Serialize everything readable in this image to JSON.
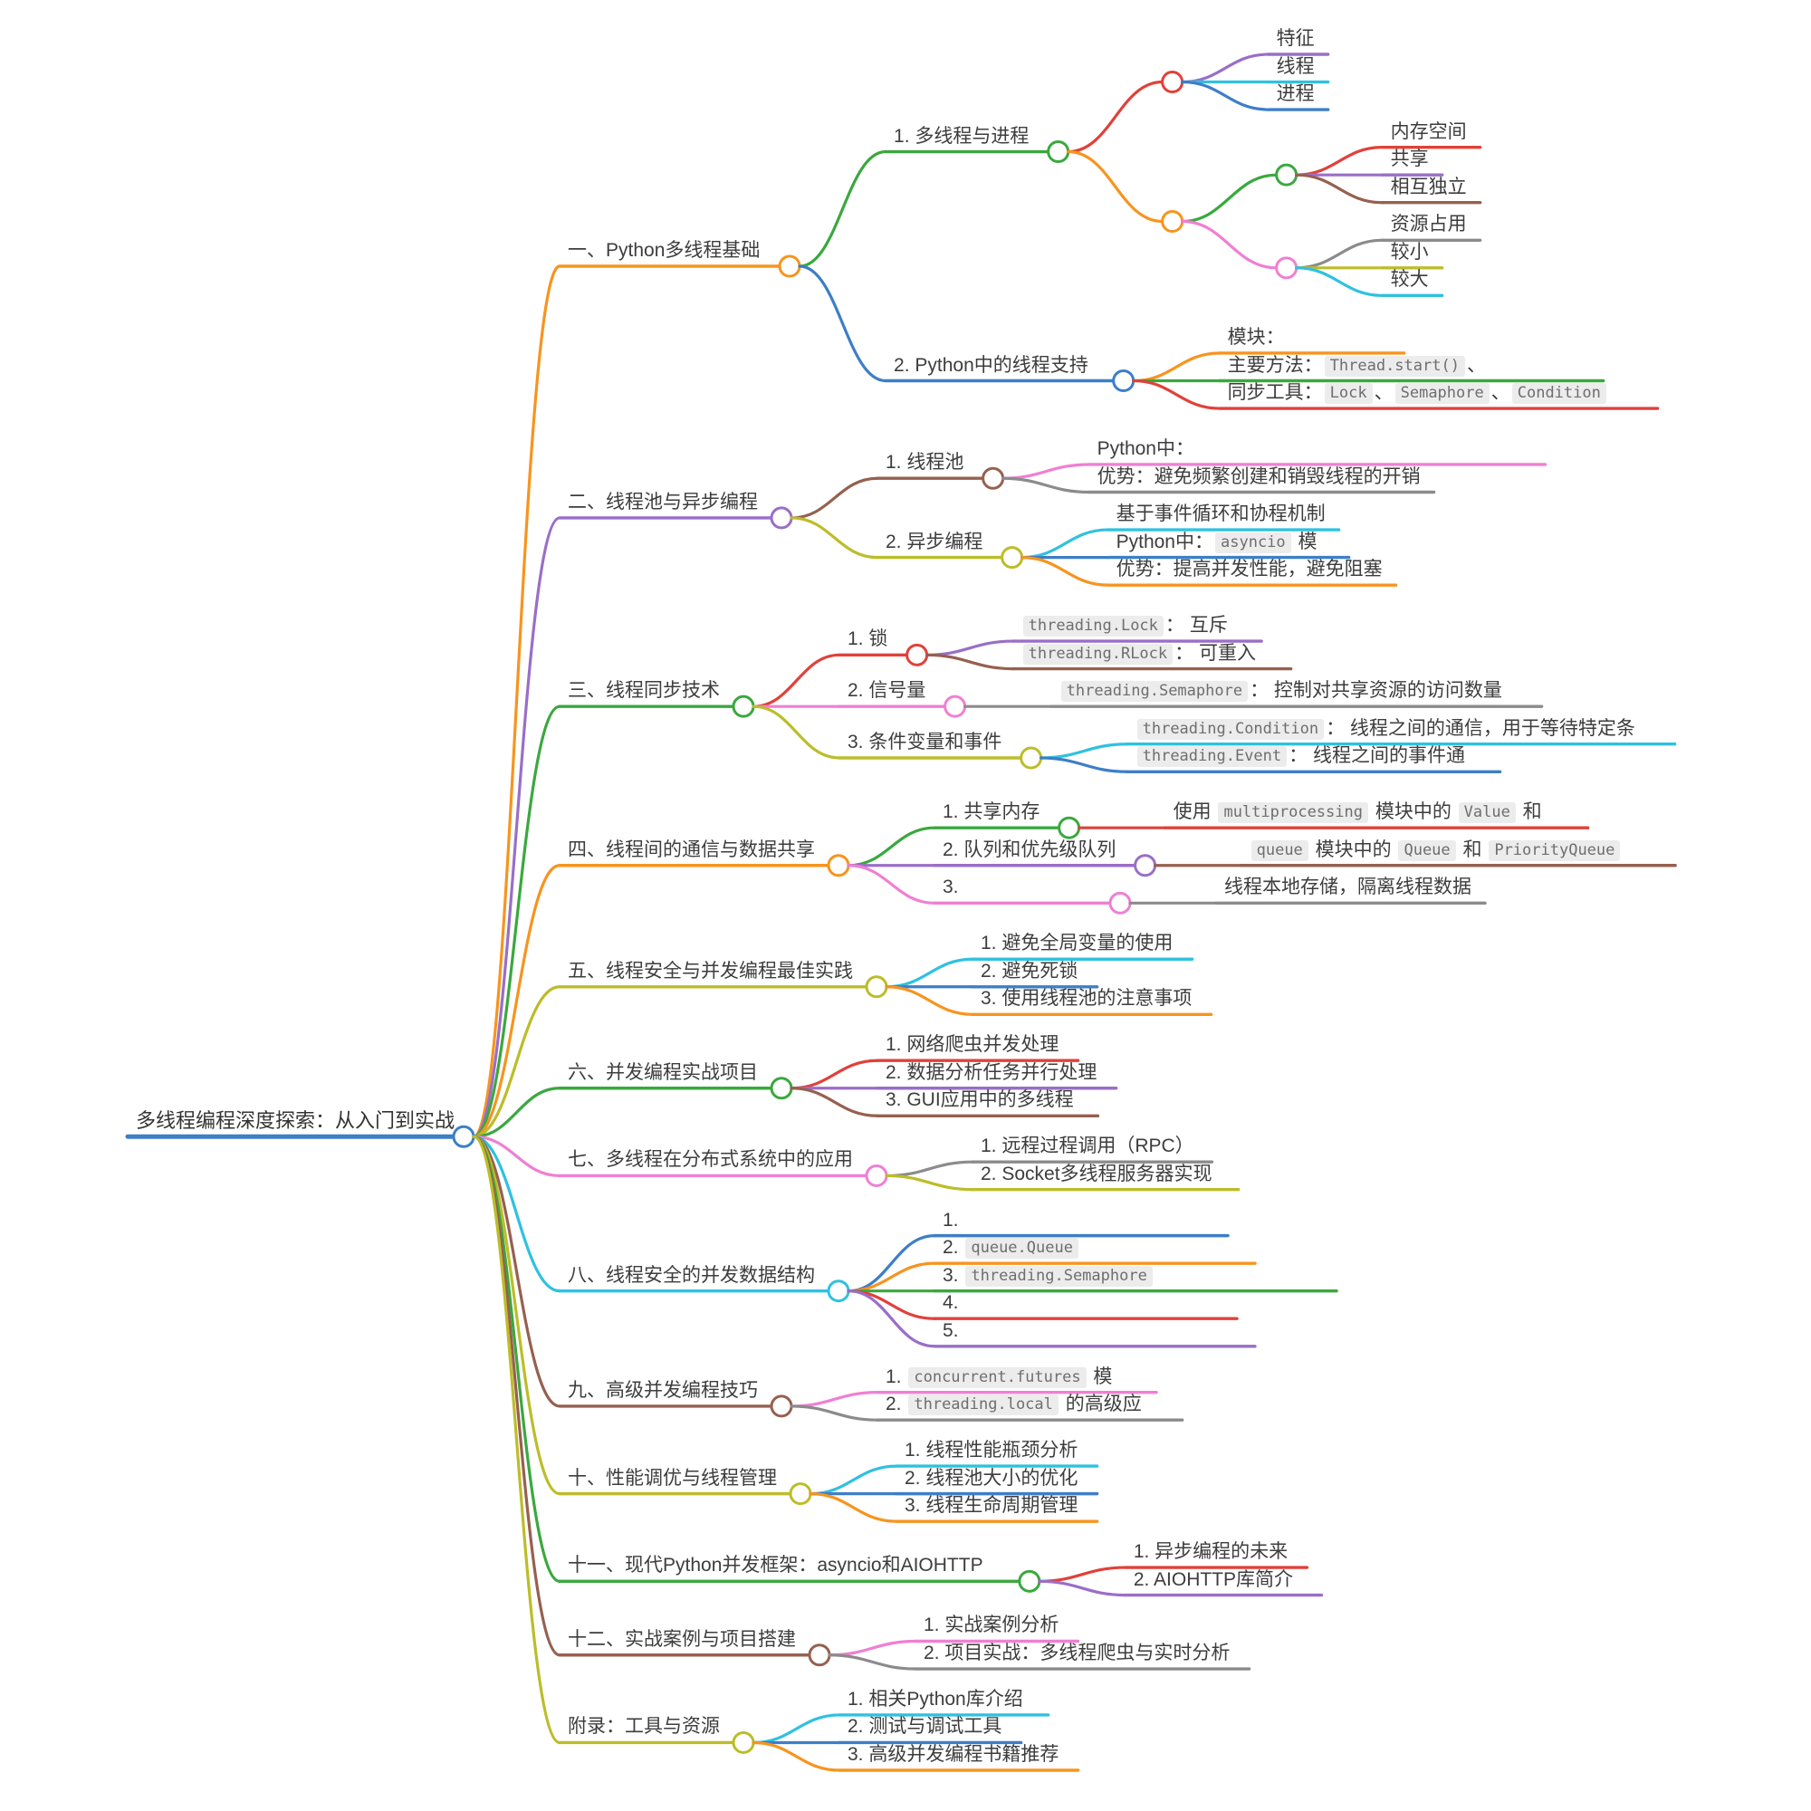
{
  "canvas": {
    "background": "#ffffff"
  },
  "palette": {
    "red": "#e0413a",
    "orange": "#f7941e",
    "green": "#3aa83e",
    "blue": "#3d7ec7",
    "cyan": "#2fc1e0",
    "purple": "#9a6ec8",
    "brown": "#96604f",
    "pink": "#f07fd3",
    "gray": "#8b8b8b",
    "olive": "#bcbd29"
  },
  "tree": {
    "label": "多线程编程深度探索：从入门到实战",
    "color": "blue",
    "children": [
      {
        "label": "一、Python多线程基础",
        "color": "orange",
        "children": [
          {
            "label": "1. 多线程与进程",
            "color": "green",
            "children": [
              {
                "label": "",
                "color": "red",
                "children": [
                  {
                    "label": "特征",
                    "color": "purple"
                  },
                  {
                    "label": "线程",
                    "color": "cyan"
                  },
                  {
                    "label": "进程",
                    "color": "blue"
                  }
                ]
              },
              {
                "label": "",
                "color": "orange",
                "children": [
                  {
                    "label": "",
                    "color": "green",
                    "children": [
                      {
                        "label": "内存空间",
                        "color": "red"
                      },
                      {
                        "label": "共享",
                        "color": "purple"
                      },
                      {
                        "label": "相互独立",
                        "color": "brown"
                      }
                    ]
                  },
                  {
                    "label": "",
                    "color": "pink",
                    "children": [
                      {
                        "label": "资源占用",
                        "color": "gray"
                      },
                      {
                        "label": "较小",
                        "color": "olive"
                      },
                      {
                        "label": "较大",
                        "color": "cyan"
                      }
                    ]
                  }
                ]
              }
            ]
          },
          {
            "label": "2. Python中的线程支持",
            "color": "blue",
            "children": [
              {
                "label": "模块：",
                "color": "orange",
                "line_len": 180
              },
              {
                "parts": [
                  {
                    "text": "主要方法："
                  },
                  {
                    "code": "Thread.start()"
                  },
                  {
                    "text": "、"
                  }
                ],
                "color": "green",
                "line_len": 400
              },
              {
                "parts": [
                  {
                    "text": "同步工具："
                  },
                  {
                    "code": "Lock"
                  },
                  {
                    "text": "、"
                  },
                  {
                    "code": "Semaphore"
                  },
                  {
                    "text": "、"
                  },
                  {
                    "code": "Condition"
                  }
                ],
                "color": "red"
              }
            ]
          }
        ]
      },
      {
        "label": "二、线程池与异步编程",
        "color": "purple",
        "children": [
          {
            "label": "1. 线程池",
            "color": "brown",
            "children": [
              {
                "label": "Python中：",
                "color": "pink",
                "line_len": 480
              },
              {
                "label": "优势：避免频繁创建和销毁线程的开销",
                "color": "gray"
              }
            ]
          },
          {
            "label": "2. 异步编程",
            "color": "olive",
            "children": [
              {
                "label": "基于事件循环和协程机制",
                "color": "cyan"
              },
              {
                "parts": [
                  {
                    "text": "Python中："
                  },
                  {
                    "code": "asyncio"
                  },
                  {
                    "text": " 模"
                  }
                ],
                "color": "blue"
              },
              {
                "label": "优势：提高并发性能，避免阻塞",
                "color": "orange"
              }
            ]
          }
        ]
      },
      {
        "label": "三、线程同步技术",
        "color": "green",
        "children": [
          {
            "label": "1. 锁",
            "color": "red",
            "children": [
              {
                "parts": [
                  {
                    "code": "threading.Lock"
                  },
                  {
                    "text": "： 互斥"
                  }
                ],
                "color": "purple"
              },
              {
                "parts": [
                  {
                    "code": "threading.RLock"
                  },
                  {
                    "text": "： 可重入"
                  }
                ],
                "color": "brown"
              }
            ]
          },
          {
            "label": "2. 信号量",
            "color": "pink",
            "children": [
              {
                "parts": [
                  {
                    "code": "threading.Semaphore"
                  },
                  {
                    "text": "： 控制对共享资源的访问数量"
                  }
                ],
                "color": "gray"
              }
            ]
          },
          {
            "label": "3. 条件变量和事件",
            "color": "olive",
            "children": [
              {
                "parts": [
                  {
                    "code": "threading.Condition"
                  },
                  {
                    "text": "： 线程之间的通信，用于等待特定条"
                  }
                ],
                "color": "cyan"
              },
              {
                "parts": [
                  {
                    "code": "threading.Event"
                  },
                  {
                    "text": "： 线程之间的事件通"
                  }
                ],
                "color": "blue"
              }
            ]
          }
        ]
      },
      {
        "label": "四、线程间的通信与数据共享",
        "color": "orange",
        "children": [
          {
            "label": "1. 共享内存",
            "color": "green",
            "children": [
              {
                "parts": [
                  {
                    "text": "使用 "
                  },
                  {
                    "code": "multiprocessing"
                  },
                  {
                    "text": " 模块中的 "
                  },
                  {
                    "code": "Value"
                  },
                  {
                    "text": " 和"
                  }
                ],
                "color": "red"
              }
            ]
          },
          {
            "label": "2. 队列和优先级队列",
            "color": "purple",
            "children": [
              {
                "parts": [
                  {
                    "code": "queue"
                  },
                  {
                    "text": " 模块中的 "
                  },
                  {
                    "code": "Queue"
                  },
                  {
                    "text": " 和 "
                  },
                  {
                    "code": "PriorityQueue"
                  }
                ],
                "color": "brown"
              }
            ]
          },
          {
            "label": "3.",
            "color": "pink",
            "line_len": 170,
            "children": [
              {
                "label": "线程本地存储，隔离线程数据",
                "color": "gray"
              }
            ]
          }
        ]
      },
      {
        "label": "五、线程安全与并发编程最佳实践",
        "color": "olive",
        "children": [
          {
            "label": "1. 避免全局变量的使用",
            "color": "cyan"
          },
          {
            "label": "2. 避免死锁",
            "color": "blue"
          },
          {
            "label": "3. 使用线程池的注意事项",
            "color": "orange"
          }
        ]
      },
      {
        "label": "六、并发编程实战项目",
        "color": "green",
        "children": [
          {
            "label": "1. 网络爬虫并发处理",
            "color": "red"
          },
          {
            "label": "2. 数据分析任务并行处理",
            "color": "purple"
          },
          {
            "label": "3. GUI应用中的多线程",
            "color": "brown"
          }
        ]
      },
      {
        "label": "七、多线程在分布式系统中的应用",
        "color": "pink",
        "children": [
          {
            "label": "1. 远程过程调用（RPC）",
            "color": "gray"
          },
          {
            "label": "2. Socket多线程服务器实现",
            "color": "olive"
          }
        ]
      },
      {
        "label": "八、线程安全的并发数据结构",
        "color": "cyan",
        "children": [
          {
            "label": "1.",
            "color": "blue",
            "line_len": 300
          },
          {
            "parts": [
              {
                "text": "2. "
              },
              {
                "code": "queue.Queue"
              }
            ],
            "color": "orange",
            "line_len": 330
          },
          {
            "parts": [
              {
                "text": "3. "
              },
              {
                "code": "threading.Semaphore"
              }
            ],
            "color": "green",
            "line_len": 420
          },
          {
            "label": "4.",
            "color": "red",
            "line_len": 310
          },
          {
            "label": "5.",
            "color": "purple",
            "line_len": 330
          }
        ]
      },
      {
        "label": "九、高级并发编程技巧",
        "color": "brown",
        "children": [
          {
            "parts": [
              {
                "text": "1. "
              },
              {
                "code": "concurrent.futures"
              },
              {
                "text": " 模"
              }
            ],
            "color": "pink"
          },
          {
            "parts": [
              {
                "text": "2. "
              },
              {
                "code": "threading.local"
              },
              {
                "text": " 的高级应"
              }
            ],
            "color": "gray"
          }
        ]
      },
      {
        "label": "十、性能调优与线程管理",
        "color": "olive",
        "children": [
          {
            "label": "1. 线程性能瓶颈分析",
            "color": "cyan"
          },
          {
            "label": "2. 线程池大小的优化",
            "color": "blue"
          },
          {
            "label": "3. 线程生命周期管理",
            "color": "orange"
          }
        ]
      },
      {
        "label": "十一、现代Python并发框架：asyncio和AIOHTTP",
        "color": "green",
        "children": [
          {
            "label": "1. 异步编程的未来",
            "color": "red"
          },
          {
            "label": "2. AIOHTTP库简介",
            "color": "purple"
          }
        ]
      },
      {
        "label": "十二、实战案例与项目搭建",
        "color": "brown",
        "children": [
          {
            "label": "1. 实战案例分析",
            "color": "pink"
          },
          {
            "label": "2. 项目实战：多线程爬虫与实时分析",
            "color": "gray"
          }
        ]
      },
      {
        "label": "附录：工具与资源",
        "color": "olive",
        "children": [
          {
            "label": "1. 相关Python库介绍",
            "color": "cyan"
          },
          {
            "label": "2. 测试与调试工具",
            "color": "blue"
          },
          {
            "label": "3. 高级并发编程书籍推荐",
            "color": "orange"
          }
        ]
      }
    ]
  }
}
